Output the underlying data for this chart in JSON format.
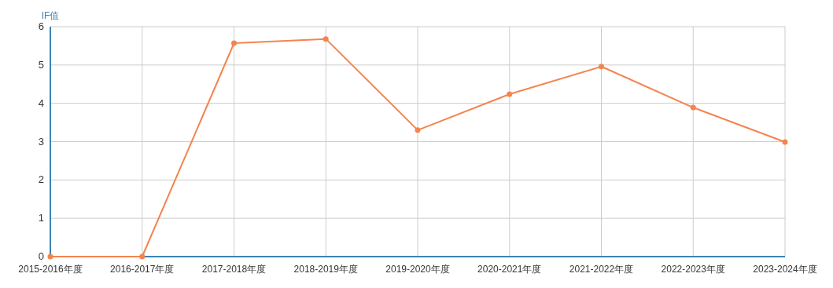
{
  "chart_data": {
    "type": "line",
    "ylabel": "IF值",
    "categories": [
      "2015-2016年度",
      "2016-2017年度",
      "2017-2018年度",
      "2018-2019年度",
      "2019-2020年度",
      "2020-2021年度",
      "2021-2022年度",
      "2022-2023年度",
      "2023-2024年度"
    ],
    "series": [
      {
        "color": "#f4844f",
        "values": [
          0,
          0,
          5.57,
          5.68,
          3.3,
          4.24,
          4.96,
          3.89,
          2.99
        ]
      }
    ],
    "ylim": [
      0,
      6
    ],
    "yticks": [
      0,
      1,
      2,
      3,
      4,
      5,
      6
    ],
    "grid": true,
    "marker": "circle",
    "line_style": "solid"
  }
}
